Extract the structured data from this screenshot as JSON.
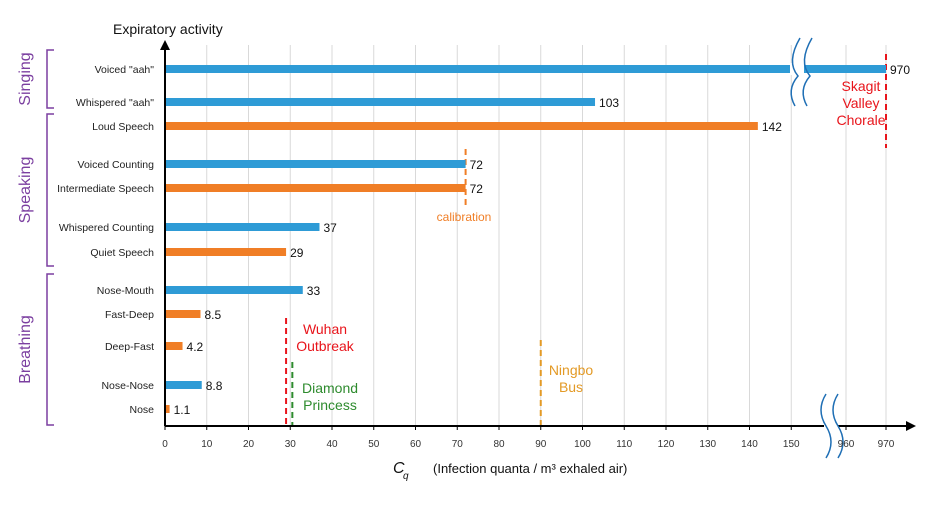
{
  "chart_data": {
    "type": "bar",
    "orientation": "horizontal",
    "title": "Expiratory activity",
    "xlabel_symbol": "C",
    "xlabel_subscript": "q",
    "xlabel": "(Infection quanta / m³  exhaled air)",
    "xlim": [
      0,
      160
    ],
    "broken_axis_ticks": [
      960,
      970
    ],
    "x_ticks": [
      "0",
      "10",
      "20",
      "30",
      "40",
      "50",
      "60",
      "70",
      "80",
      "90",
      "100",
      "110",
      "120",
      "130",
      "140",
      "150",
      "960",
      "970"
    ],
    "grid": true,
    "colors": {
      "blue": "#2e9bd6",
      "orange": "#f07e26"
    },
    "categories": [
      "Voiced \"aah\"",
      "Whispered \"aah\"",
      "Loud Speech",
      "Voiced Counting",
      "Intermediate Speech",
      "Whispered Counting",
      "Quiet Speech",
      "Nose-Mouth",
      "Fast-Deep",
      "Deep-Fast",
      "Nose-Nose",
      "Nose"
    ],
    "values": [
      970,
      103,
      142,
      72,
      72,
      37,
      29,
      33,
      8.5,
      4.2,
      8.8,
      1.1
    ],
    "value_labels": [
      "970",
      "103",
      "142",
      "72",
      "72",
      "37",
      "29",
      "33",
      "8.5",
      "4.2",
      "8.8",
      "1.1"
    ],
    "bar_colors": [
      "blue",
      "blue",
      "orange",
      "blue",
      "orange",
      "blue",
      "orange",
      "blue",
      "orange",
      "orange",
      "blue",
      "orange"
    ],
    "groups": [
      {
        "label": "Singing",
        "members": [
          "Voiced \"aah\"",
          "Whispered \"aah\""
        ]
      },
      {
        "label": "Speaking",
        "members": [
          "Loud Speech",
          "Voiced Counting",
          "Intermediate Speech",
          "Whispered Counting",
          "Quiet Speech"
        ]
      },
      {
        "label": "Breathing",
        "members": [
          "Nose-Mouth",
          "Fast-Deep",
          "Deep-Fast",
          "Nose-Nose",
          "Nose"
        ]
      }
    ],
    "reference_lines": [
      {
        "label": [
          "Wuhan",
          "Outbreak"
        ],
        "x": 29,
        "color": "#e8141b"
      },
      {
        "label": [
          "Diamond",
          "Princess"
        ],
        "x": 30.5,
        "color": "#2e8b2e"
      },
      {
        "label": [
          "Ningbo",
          "Bus"
        ],
        "x": 90,
        "color": "#e39a26"
      },
      {
        "label": [
          "Skagit",
          "Valley",
          "Chorale"
        ],
        "x": 970,
        "color": "#e8141b"
      },
      {
        "label": [
          "calibration"
        ],
        "x": 72,
        "color": "#f07e26"
      }
    ]
  }
}
